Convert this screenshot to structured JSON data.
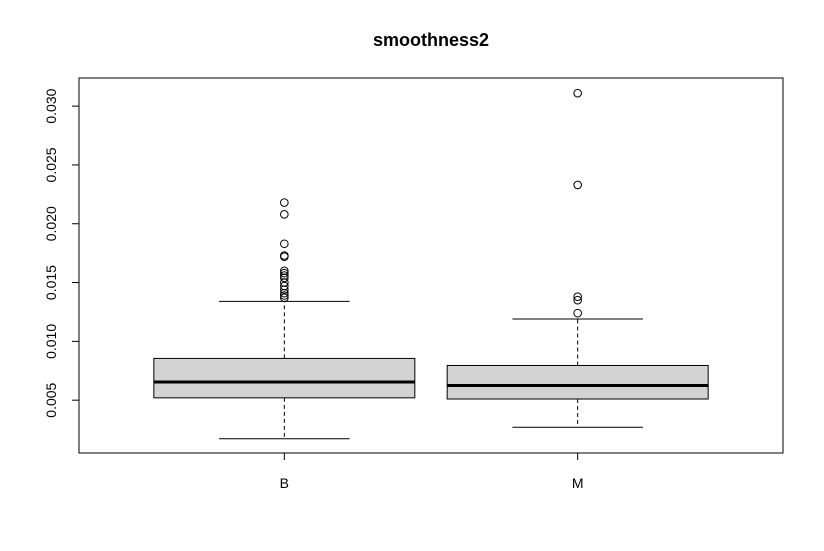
{
  "chart_data": {
    "type": "boxplot",
    "title": "smoothness2",
    "xlabel": "",
    "ylabel": "",
    "ylim": [
      0.0017,
      0.0312
    ],
    "y_ticks": [
      0.005,
      0.01,
      0.015,
      0.02,
      0.025,
      0.03
    ],
    "y_tick_labels": [
      "0.005",
      "0.010",
      "0.015",
      "0.020",
      "0.025",
      "0.030"
    ],
    "categories": [
      "B",
      "M"
    ],
    "box_color": "#d3d3d3",
    "grid": false,
    "series": [
      {
        "category": "B",
        "whisker_low": 0.00172,
        "q1": 0.0052,
        "median": 0.00655,
        "q3": 0.00855,
        "whisker_high": 0.0134,
        "outliers": [
          0.0137,
          0.0139,
          0.0141,
          0.0144,
          0.0147,
          0.015,
          0.0154,
          0.0156,
          0.0158,
          0.016,
          0.0172,
          0.0173,
          0.0183,
          0.0208,
          0.0218
        ]
      },
      {
        "category": "M",
        "whisker_low": 0.0027,
        "q1": 0.0051,
        "median": 0.00625,
        "q3": 0.00795,
        "whisker_high": 0.0119,
        "outliers": [
          0.0124,
          0.0135,
          0.0138,
          0.0233,
          0.0311
        ]
      }
    ]
  }
}
